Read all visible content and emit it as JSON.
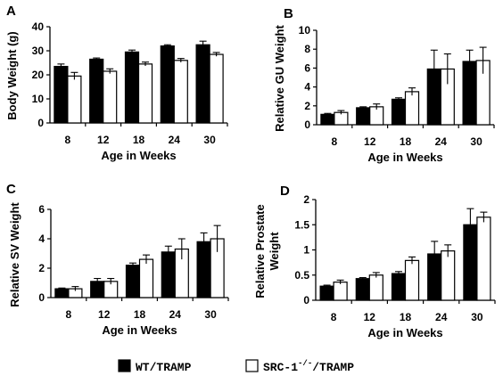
{
  "legend": {
    "items": [
      {
        "label": "WT/TRAMP",
        "color": "#000000"
      },
      {
        "label_parts": [
          "SRC-1",
          "-/-",
          "/TRAMP"
        ],
        "color": "#ffffff"
      }
    ]
  },
  "chart_data": [
    {
      "panel": "A",
      "type": "bar",
      "categories": [
        "8",
        "12",
        "18",
        "24",
        "30"
      ],
      "series": [
        {
          "values": [
            23.5,
            26.5,
            29.5,
            32,
            32.5
          ],
          "errors": [
            1,
            0.5,
            0.8,
            0.5,
            1.5
          ],
          "color": "#000000"
        },
        {
          "values": [
            19.5,
            21.5,
            24.5,
            26,
            28.5
          ],
          "errors": [
            1.5,
            1,
            0.8,
            0.8,
            0.8
          ],
          "color": "#ffffff"
        }
      ],
      "xlabel": "Age in Weeks",
      "ylabel": "Body Weight (g)",
      "ylim": [
        0,
        40
      ],
      "yticks": [
        "0",
        "10",
        "20",
        "30",
        "40"
      ]
    },
    {
      "panel": "B",
      "type": "bar",
      "categories": [
        "8",
        "12",
        "18",
        "24",
        "30"
      ],
      "series": [
        {
          "values": [
            1.1,
            1.8,
            2.7,
            5.9,
            6.7
          ],
          "errors": [
            0.1,
            0.1,
            0.15,
            2.0,
            1.2
          ],
          "color": "#000000"
        },
        {
          "values": [
            1.3,
            1.9,
            3.5,
            5.9,
            6.8
          ],
          "errors": [
            0.2,
            0.3,
            0.4,
            1.6,
            1.4
          ],
          "color": "#ffffff"
        }
      ],
      "xlabel": "Age in Weeks",
      "ylabel": "Relative GU Weight",
      "ylim": [
        0,
        10
      ],
      "yticks": [
        "0",
        "2",
        "4",
        "6",
        "8",
        "10"
      ]
    },
    {
      "panel": "C",
      "type": "bar",
      "categories": [
        "8",
        "12",
        "18",
        "24",
        "30"
      ],
      "series": [
        {
          "values": [
            0.6,
            1.1,
            2.2,
            3.1,
            3.8
          ],
          "errors": [
            0.05,
            0.2,
            0.15,
            0.4,
            0.6
          ],
          "color": "#000000"
        },
        {
          "values": [
            0.6,
            1.1,
            2.6,
            3.3,
            4.0
          ],
          "errors": [
            0.15,
            0.2,
            0.3,
            0.7,
            0.9
          ],
          "color": "#ffffff"
        }
      ],
      "xlabel": "Age in Weeks",
      "ylabel": "Relative SV Weight",
      "ylim": [
        0,
        6
      ],
      "yticks": [
        "0",
        "2",
        "4",
        "6"
      ]
    },
    {
      "panel": "D",
      "type": "bar",
      "categories": [
        "8",
        "12",
        "18",
        "24",
        "30"
      ],
      "series": [
        {
          "values": [
            0.28,
            0.43,
            0.53,
            0.92,
            1.5
          ],
          "errors": [
            0.02,
            0.02,
            0.04,
            0.25,
            0.32
          ],
          "color": "#000000"
        },
        {
          "values": [
            0.36,
            0.5,
            0.79,
            0.98,
            1.65
          ],
          "errors": [
            0.04,
            0.05,
            0.07,
            0.12,
            0.1
          ],
          "color": "#ffffff"
        }
      ],
      "xlabel": "Age in Weeks",
      "ylabel": "Relative Prostate Weight",
      "ylabel_lines": [
        "Relative Prostate",
        "Weight"
      ],
      "ylim": [
        0,
        2
      ],
      "yticks": [
        "0",
        "0.5",
        "1",
        "1.5",
        "2"
      ]
    }
  ]
}
